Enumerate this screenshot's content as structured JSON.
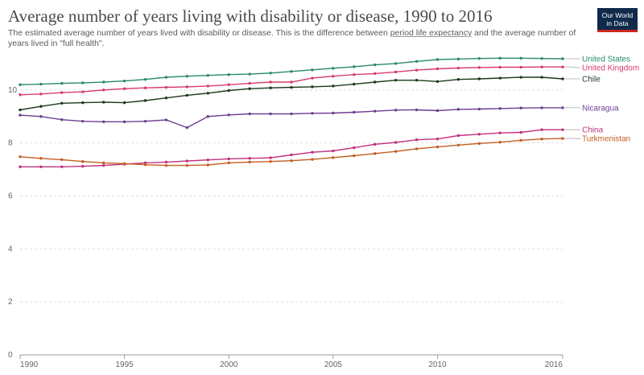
{
  "header": {
    "title": "Average number of years living with disability or disease, 1990 to 2016",
    "subtitle_pre": "The estimated average number of years lived with disability or disease. This is the difference between ",
    "subtitle_link": "period life expectancy",
    "subtitle_post": " and the average number of years lived in \"full health\".",
    "logo_line1": "Our World",
    "logo_line2": "in Data"
  },
  "chart_data": {
    "type": "line",
    "x": [
      1990,
      1991,
      1992,
      1993,
      1994,
      1995,
      1996,
      1997,
      1998,
      1999,
      2000,
      2001,
      2002,
      2003,
      2004,
      2005,
      2006,
      2007,
      2008,
      2009,
      2010,
      2011,
      2012,
      2013,
      2014,
      2015,
      2016
    ],
    "xlim": [
      1990,
      2016
    ],
    "ylim": [
      0,
      12
    ],
    "xticks": [
      1990,
      1995,
      2000,
      2005,
      2010,
      2016
    ],
    "yticks": [
      0,
      2,
      4,
      6,
      8,
      10
    ],
    "grid": "horizontal dashed",
    "legend": "line end labels, right",
    "series": [
      {
        "name": "United States",
        "color": "#2a8a6e",
        "values": [
          10.2,
          10.22,
          10.25,
          10.27,
          10.3,
          10.34,
          10.4,
          10.48,
          10.52,
          10.55,
          10.58,
          10.6,
          10.64,
          10.7,
          10.76,
          10.82,
          10.88,
          10.95,
          11.0,
          11.08,
          11.15,
          11.17,
          11.19,
          11.2,
          11.2,
          11.19,
          11.18
        ]
      },
      {
        "name": "United Kingdom",
        "color": "#d73c6a",
        "values": [
          9.82,
          9.85,
          9.9,
          9.93,
          10.0,
          10.05,
          10.08,
          10.1,
          10.12,
          10.15,
          10.2,
          10.25,
          10.3,
          10.3,
          10.45,
          10.52,
          10.58,
          10.62,
          10.68,
          10.75,
          10.8,
          10.83,
          10.85,
          10.86,
          10.86,
          10.87,
          10.87
        ]
      },
      {
        "name": "Chile",
        "color": "#1c3a1c",
        "values": [
          9.25,
          9.38,
          9.5,
          9.52,
          9.54,
          9.52,
          9.6,
          9.7,
          9.8,
          9.88,
          9.98,
          10.05,
          10.08,
          10.1,
          10.12,
          10.15,
          10.22,
          10.3,
          10.37,
          10.37,
          10.32,
          10.4,
          10.42,
          10.45,
          10.48,
          10.48,
          10.42
        ]
      },
      {
        "name": "Nicaragua",
        "color": "#6d3e91",
        "values": [
          9.05,
          9.0,
          8.88,
          8.82,
          8.8,
          8.8,
          8.82,
          8.87,
          8.58,
          9.0,
          9.06,
          9.1,
          9.1,
          9.1,
          9.12,
          9.13,
          9.16,
          9.2,
          9.24,
          9.25,
          9.22,
          9.27,
          9.28,
          9.3,
          9.32,
          9.33,
          9.33
        ]
      },
      {
        "name": "China",
        "color": "#c0307f",
        "values": [
          7.1,
          7.1,
          7.1,
          7.12,
          7.15,
          7.2,
          7.25,
          7.28,
          7.32,
          7.36,
          7.4,
          7.42,
          7.44,
          7.55,
          7.65,
          7.7,
          7.82,
          7.95,
          8.02,
          8.12,
          8.15,
          8.28,
          8.33,
          8.38,
          8.4,
          8.5,
          8.5
        ]
      },
      {
        "name": "Turkmenistan",
        "color": "#c15f21",
        "values": [
          7.48,
          7.42,
          7.37,
          7.3,
          7.25,
          7.22,
          7.18,
          7.15,
          7.15,
          7.17,
          7.25,
          7.28,
          7.3,
          7.33,
          7.38,
          7.45,
          7.52,
          7.6,
          7.68,
          7.78,
          7.85,
          7.92,
          7.98,
          8.03,
          8.1,
          8.15,
          8.17
        ]
      }
    ]
  }
}
